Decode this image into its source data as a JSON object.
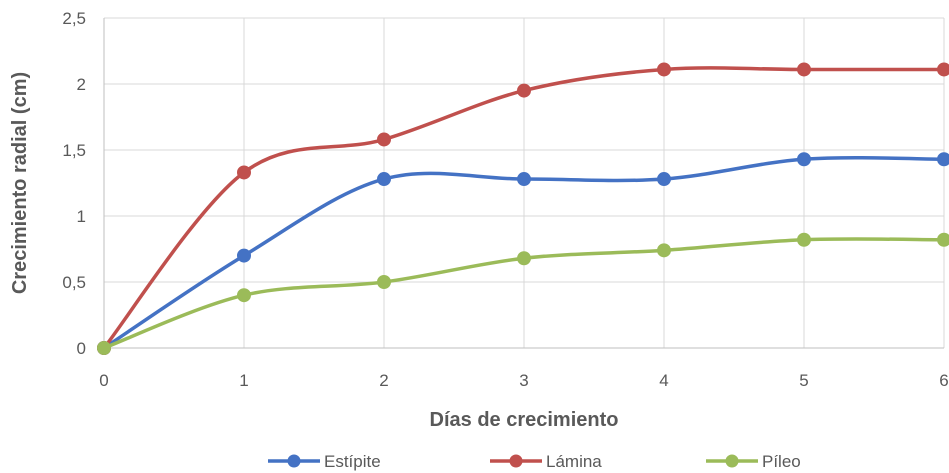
{
  "chart_data": {
    "type": "line",
    "smooth": true,
    "title": "",
    "xlabel": "Días de crecimiento",
    "ylabel": "Crecimiento radial (cm)",
    "x": [
      0,
      1,
      2,
      3,
      4,
      5,
      6
    ],
    "x_tick_labels": [
      "0",
      "1",
      "2",
      "3",
      "4",
      "5",
      "6"
    ],
    "xlim": [
      0,
      6
    ],
    "ylim": [
      0,
      2.5
    ],
    "y_ticks": [
      0,
      0.5,
      1,
      1.5,
      2,
      2.5
    ],
    "y_tick_labels": [
      "0",
      "0,5",
      "1",
      "1,5",
      "2",
      "2,5"
    ],
    "grid": true,
    "legend_position": "bottom",
    "series": [
      {
        "name": "Estípite",
        "color": "#4472C4",
        "values": [
          0,
          0.7,
          1.28,
          1.28,
          1.28,
          1.43,
          1.43
        ]
      },
      {
        "name": "Lámina",
        "color": "#C0504D",
        "values": [
          0,
          1.33,
          1.58,
          1.95,
          2.11,
          2.11,
          2.11
        ]
      },
      {
        "name": "Píleo",
        "color": "#9BBB59",
        "values": [
          0,
          0.4,
          0.5,
          0.68,
          0.74,
          0.82,
          0.82
        ]
      }
    ]
  }
}
